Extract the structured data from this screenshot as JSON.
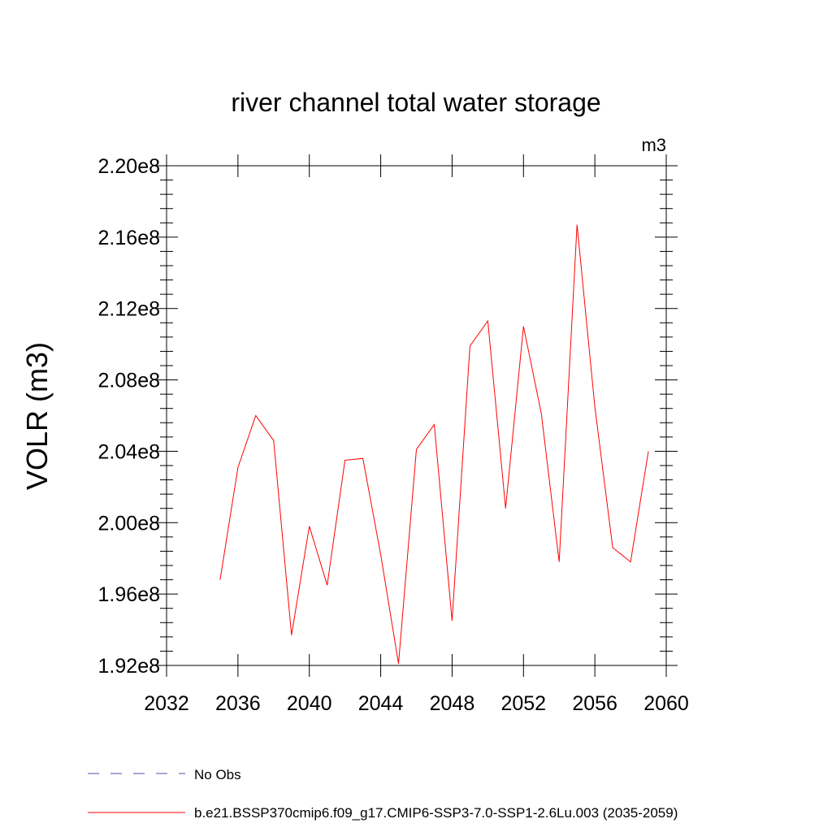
{
  "chart_data": {
    "type": "line",
    "title": "river channel total water storage",
    "units": "m3",
    "xlabel": "",
    "ylabel": "VOLR  (m3)",
    "xlim": [
      2032,
      2060
    ],
    "ylim": [
      192000000.0,
      220000000.0
    ],
    "x_ticks": [
      2032,
      2036,
      2040,
      2044,
      2048,
      2052,
      2056,
      2060
    ],
    "x_tick_labels": [
      "2032",
      "2036",
      "2040",
      "2044",
      "2048",
      "2052",
      "2056",
      "2060"
    ],
    "y_ticks": [
      192000000.0,
      196000000.0,
      200000000.0,
      204000000.0,
      208000000.0,
      212000000.0,
      216000000.0,
      220000000.0
    ],
    "y_tick_labels": [
      "1.92e8",
      "1.96e8",
      "2.00e8",
      "2.04e8",
      "2.08e8",
      "2.12e8",
      "2.16e8",
      "2.20e8"
    ],
    "x": [
      2035,
      2036,
      2037,
      2038,
      2039,
      2040,
      2041,
      2042,
      2043,
      2044,
      2045,
      2046,
      2047,
      2048,
      2049,
      2050,
      2051,
      2052,
      2053,
      2054,
      2055,
      2056,
      2057,
      2058,
      2059
    ],
    "series": [
      {
        "name": "b.e21.BSSP370cmip6.f09_g17.CMIP6-SSP3-7.0-SSP1-2.6Lu.003 (2035-2059)",
        "color": "#ff0000",
        "values": [
          196800000.0,
          203100000.0,
          206000000.0,
          204600000.0,
          193700000.0,
          199800000.0,
          196500000.0,
          203500000.0,
          203600000.0,
          198200000.0,
          192100000.0,
          204100000.0,
          205500000.0,
          194500000.0,
          209900000.0,
          211300000.0,
          200800000.0,
          211000000.0,
          206100000.0,
          197800000.0,
          216700000.0,
          206500000.0,
          198600000.0,
          197800000.0,
          204000000.0
        ]
      }
    ],
    "legend": [
      {
        "label": "No Obs",
        "color": "#5b4aa8",
        "style": "dashed"
      },
      {
        "label": "b.e21.BSSP370cmip6.f09_g17.CMIP6-SSP3-7.0-SSP1-2.6Lu.003 (2035-2059)",
        "color": "#ff0000",
        "style": "solid"
      }
    ]
  }
}
